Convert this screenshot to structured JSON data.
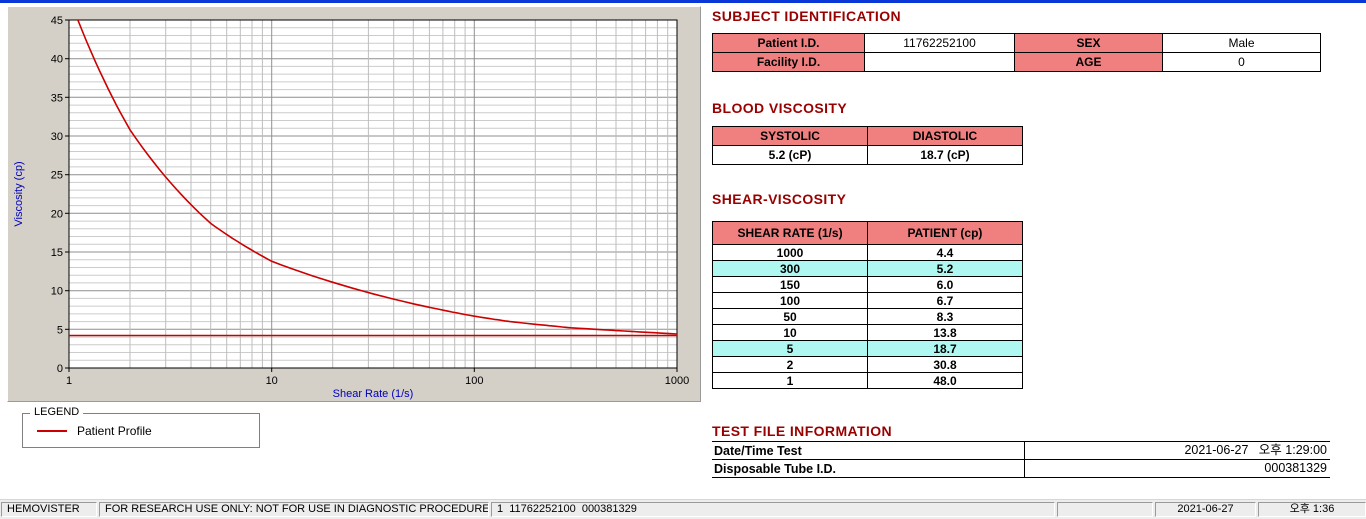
{
  "chart_data": {
    "type": "line",
    "title": "",
    "xlabel": "Shear Rate (1/s)",
    "ylabel": "Viscosity (cp)",
    "x_scale": "log",
    "xlim": [
      1,
      1000
    ],
    "ylim": [
      0,
      45
    ],
    "x_ticks": [
      1,
      10,
      100,
      1000
    ],
    "y_ticks": [
      0,
      5,
      10,
      15,
      20,
      25,
      30,
      35,
      40,
      45
    ],
    "grid": true,
    "axis_label_color": "#0000bb",
    "legend_position": "below-left",
    "series": [
      {
        "name": "Patient Profile",
        "color": "#cc0000",
        "x": [
          1,
          2,
          5,
          10,
          50,
          100,
          150,
          300,
          1000
        ],
        "y": [
          48.0,
          30.8,
          18.7,
          13.8,
          8.3,
          6.7,
          6.0,
          5.2,
          4.4
        ]
      },
      {
        "name": "Baseline",
        "color": "#cc0000",
        "x": [
          1,
          1000
        ],
        "y": [
          4.2,
          4.2
        ]
      }
    ]
  },
  "legend": {
    "title": "LEGEND",
    "items": [
      {
        "label": "Patient Profile",
        "color": "#cc0000"
      }
    ]
  },
  "subject": {
    "title": "SUBJECT IDENTIFICATION",
    "patient_id_label": "Patient I.D.",
    "patient_id": "11762252100",
    "sex_label": "SEX",
    "sex": "Male",
    "facility_id_label": "Facility I.D.",
    "facility_id": "",
    "age_label": "AGE",
    "age": "0"
  },
  "blood_viscosity": {
    "title": "BLOOD VISCOSITY",
    "systolic_label": "SYSTOLIC",
    "diastolic_label": "DIASTOLIC",
    "systolic_value": "5.2 (cP)",
    "diastolic_value": "18.7 (cP)"
  },
  "shear": {
    "title": "SHEAR-VISCOSITY",
    "rate_header": "SHEAR RATE (1/s)",
    "patient_header": "PATIENT (cp)",
    "highlight_color": "#aff8f2",
    "rows": [
      {
        "rate": "1000",
        "value": "4.4",
        "highlight": false
      },
      {
        "rate": "300",
        "value": "5.2",
        "highlight": true
      },
      {
        "rate": "150",
        "value": "6.0",
        "highlight": false
      },
      {
        "rate": "100",
        "value": "6.7",
        "highlight": false
      },
      {
        "rate": "50",
        "value": "8.3",
        "highlight": false
      },
      {
        "rate": "10",
        "value": "13.8",
        "highlight": false
      },
      {
        "rate": "5",
        "value": "18.7",
        "highlight": true
      },
      {
        "rate": "2",
        "value": "30.8",
        "highlight": false
      },
      {
        "rate": "1",
        "value": "48.0",
        "highlight": false
      }
    ]
  },
  "test_file": {
    "title": "TEST FILE INFORMATION",
    "rows": [
      {
        "label": "Date/Time Test",
        "value": "2021-06-27   오후 1:29:00"
      },
      {
        "label": "Disposable Tube I.D.",
        "value": "000381329"
      }
    ]
  },
  "status_bar": {
    "app_name": "HEMOVISTER",
    "notice": "FOR RESEARCH USE ONLY: NOT FOR USE IN DIAGNOSTIC PROCEDURES",
    "record_info": "1  11762252100  000381329",
    "date": "2021-06-27",
    "time": "오후 1:36"
  },
  "colors": {
    "title": "#990000",
    "header_bg": "#f08080",
    "highlight": "#aff8f2",
    "series": "#cc0000",
    "top_edge": "#0a38d8"
  }
}
